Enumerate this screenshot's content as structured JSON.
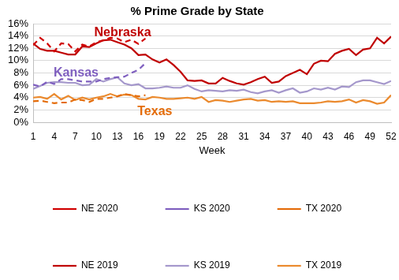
{
  "chart_data": {
    "type": "line",
    "title": "% Prime Grade by State",
    "x_label": "Week",
    "x": [
      1,
      2,
      3,
      4,
      5,
      6,
      7,
      8,
      9,
      10,
      11,
      12,
      13,
      14,
      15,
      16,
      17,
      18,
      19,
      20,
      21,
      22,
      23,
      24,
      25,
      26,
      27,
      28,
      29,
      30,
      31,
      32,
      33,
      34,
      35,
      36,
      37,
      38,
      39,
      40,
      41,
      42,
      43,
      44,
      45,
      46,
      47,
      48,
      49,
      50,
      51,
      52
    ],
    "xlim": [
      1,
      52
    ],
    "xticks": [
      1,
      4,
      7,
      10,
      13,
      16,
      19,
      22,
      25,
      28,
      31,
      34,
      37,
      40,
      43,
      46,
      49,
      52
    ],
    "ylim": [
      0,
      16
    ],
    "yticks": [
      {
        "value": 0,
        "label": "0%"
      },
      {
        "value": 2,
        "label": "2%"
      },
      {
        "value": 4,
        "label": "4%"
      },
      {
        "value": 6,
        "label": "6%"
      },
      {
        "value": 8,
        "label": "8%"
      },
      {
        "value": 10,
        "label": "10%"
      },
      {
        "value": 12,
        "label": "12%"
      },
      {
        "value": 14,
        "label": "14%"
      },
      {
        "value": 16,
        "label": "16%"
      }
    ],
    "grid": true,
    "legend": "bottom",
    "annotations": [
      {
        "text": "Nebraska",
        "color": "#c00000"
      },
      {
        "text": "Kansas",
        "color": "#7f5fbf"
      },
      {
        "text": "Texas",
        "color": "#e46c0a"
      }
    ],
    "series": [
      {
        "name": "NE 2020",
        "color": "#d00000",
        "line_style": "dashed",
        "values": [
          12.5,
          13.7,
          12.8,
          11.5,
          12.8,
          12.7,
          11.5,
          12.6,
          12.3,
          13.0,
          13.3,
          13.7,
          13.6,
          13.0,
          13.4,
          12.7,
          13.6,
          null,
          null,
          null,
          null,
          null,
          null,
          null,
          null,
          null,
          null,
          null,
          null,
          null,
          null,
          null,
          null,
          null,
          null,
          null,
          null,
          null,
          null,
          null,
          null,
          null,
          null,
          null,
          null,
          null,
          null,
          null,
          null,
          null,
          null,
          null
        ]
      },
      {
        "name": "KS 2020",
        "color": "#7f5fbf",
        "line_style": "dashed",
        "values": [
          6.1,
          5.8,
          6.6,
          6.2,
          7.0,
          7.0,
          6.8,
          6.6,
          6.6,
          6.6,
          7.0,
          7.2,
          7.3,
          7.4,
          8.0,
          8.5,
          9.6,
          null,
          null,
          null,
          null,
          null,
          null,
          null,
          null,
          null,
          null,
          null,
          null,
          null,
          null,
          null,
          null,
          null,
          null,
          null,
          null,
          null,
          null,
          null,
          null,
          null,
          null,
          null,
          null,
          null,
          null,
          null,
          null,
          null,
          null,
          null
        ]
      },
      {
        "name": "TX 2020",
        "color": "#e46c0a",
        "line_style": "dashed",
        "values": [
          3.4,
          3.5,
          3.3,
          3.1,
          3.2,
          3.2,
          3.7,
          3.6,
          3.3,
          3.8,
          3.8,
          4.0,
          4.2,
          4.6,
          4.4,
          4.2,
          4.4,
          null,
          null,
          null,
          null,
          null,
          null,
          null,
          null,
          null,
          null,
          null,
          null,
          null,
          null,
          null,
          null,
          null,
          null,
          null,
          null,
          null,
          null,
          null,
          null,
          null,
          null,
          null,
          null,
          null,
          null,
          null,
          null,
          null,
          null,
          null
        ]
      },
      {
        "name": "NE 2019",
        "color": "#c00000",
        "line_style": "solid",
        "values": [
          12.8,
          11.9,
          11.6,
          11.6,
          11.3,
          11.0,
          11.0,
          12.3,
          12.2,
          12.8,
          13.3,
          13.4,
          13.0,
          12.6,
          12.0,
          10.9,
          11.0,
          10.2,
          9.7,
          10.2,
          9.3,
          8.2,
          6.8,
          6.7,
          6.8,
          6.3,
          6.3,
          7.2,
          6.7,
          6.3,
          6.1,
          6.5,
          7.0,
          7.4,
          6.4,
          6.6,
          7.5,
          8.0,
          8.5,
          7.8,
          9.5,
          10.0,
          9.9,
          11.1,
          11.6,
          11.9,
          10.9,
          11.8,
          12.0,
          13.7,
          12.8,
          13.9
        ]
      },
      {
        "name": "KS 2019",
        "color": "#a598cc",
        "line_style": "solid",
        "values": [
          5.4,
          5.9,
          6.4,
          6.5,
          6.5,
          6.4,
          6.4,
          6.0,
          6.1,
          7.0,
          6.6,
          7.0,
          7.3,
          6.3,
          6.0,
          6.2,
          5.5,
          5.5,
          5.6,
          5.8,
          5.6,
          5.6,
          6.0,
          5.4,
          5.0,
          5.2,
          5.1,
          5.0,
          5.2,
          5.1,
          5.3,
          4.9,
          4.7,
          5.0,
          5.2,
          4.8,
          5.2,
          5.5,
          4.8,
          5.0,
          5.5,
          5.3,
          5.6,
          5.3,
          5.8,
          5.7,
          6.5,
          6.8,
          6.8,
          6.5,
          6.2,
          6.7
        ]
      },
      {
        "name": "TX 2019",
        "color": "#eb8a2e",
        "line_style": "solid",
        "values": [
          4.0,
          4.1,
          3.8,
          4.6,
          3.7,
          4.3,
          3.6,
          4.0,
          3.7,
          4.0,
          4.2,
          4.6,
          4.2,
          4.5,
          4.4,
          3.8,
          3.7,
          4.1,
          4.0,
          3.8,
          3.8,
          3.9,
          4.0,
          3.8,
          4.1,
          3.3,
          3.6,
          3.5,
          3.3,
          3.5,
          3.7,
          3.8,
          3.5,
          3.6,
          3.3,
          3.4,
          3.3,
          3.4,
          3.1,
          3.1,
          3.1,
          3.2,
          3.4,
          3.3,
          3.4,
          3.7,
          3.2,
          3.6,
          3.4,
          3.0,
          3.2,
          4.4
        ]
      }
    ]
  }
}
